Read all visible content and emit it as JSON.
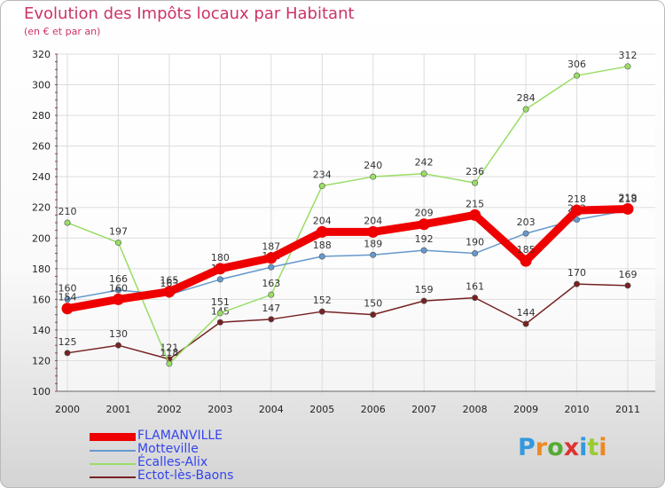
{
  "title": "Evolution des Impôts locaux par Habitant",
  "subtitle": "(en € et par an)",
  "logo": "Proxiti",
  "chart_data": {
    "type": "line",
    "title": "Evolution des Impôts locaux par Habitant",
    "subtitle": "(en € et par an)",
    "x": [
      "2000",
      "2001",
      "2002",
      "2003",
      "2004",
      "2005",
      "2006",
      "2007",
      "2008",
      "2009",
      "2010",
      "2011"
    ],
    "ylim": [
      100,
      320
    ],
    "yticks": [
      100,
      120,
      140,
      160,
      180,
      200,
      220,
      240,
      260,
      280,
      300,
      320
    ],
    "grid": true,
    "legend": "bottom-left",
    "series": [
      {
        "name": "FLAMANVILLE",
        "color": "#ee0000",
        "values": [
          154,
          160,
          165,
          180,
          187,
          204,
          204,
          209,
          215,
          185,
          218,
          219
        ]
      },
      {
        "name": "Motteville",
        "color": "#6699cc",
        "values": [
          160,
          166,
          163,
          173,
          181,
          188,
          189,
          192,
          190,
          203,
          212,
          218
        ]
      },
      {
        "name": "Écalles-Alix",
        "color": "#99dd66",
        "values": [
          210,
          197,
          118,
          151,
          163,
          234,
          240,
          242,
          236,
          284,
          306,
          312
        ]
      },
      {
        "name": "Ectot-lès-Baons",
        "color": "#772222",
        "values": [
          125,
          130,
          121,
          145,
          147,
          152,
          150,
          159,
          161,
          144,
          170,
          169
        ]
      }
    ]
  }
}
